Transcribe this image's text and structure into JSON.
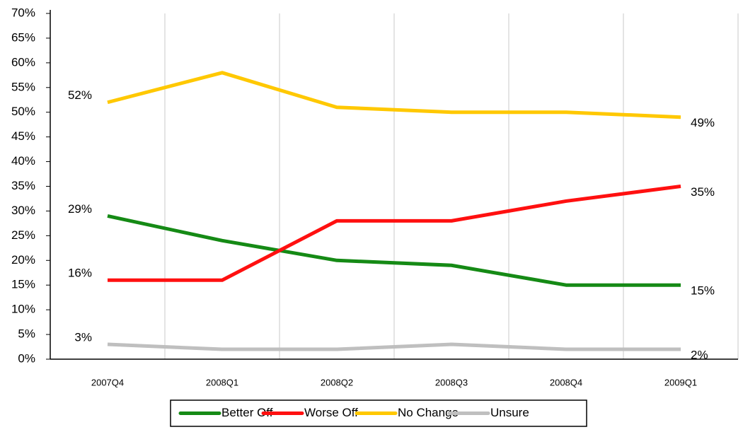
{
  "chart_data": {
    "type": "line",
    "categories": [
      "2007Q4",
      "2008Q1",
      "2008Q2",
      "2008Q3",
      "2008Q4",
      "2009Q1"
    ],
    "series": [
      {
        "name": "Better Off",
        "color": "#158a15",
        "values": [
          29,
          24,
          20,
          19,
          15,
          15
        ],
        "value_labels": [
          "29%",
          null,
          null,
          null,
          null,
          "15%"
        ]
      },
      {
        "name": "Worse Off",
        "color": "#ff1010",
        "values": [
          16,
          16,
          28,
          28,
          32,
          35
        ],
        "value_labels": [
          "16%",
          null,
          null,
          null,
          null,
          "35%"
        ]
      },
      {
        "name": "No Change",
        "color": "#ffc800",
        "values": [
          52,
          58,
          51,
          50,
          50,
          49
        ],
        "value_labels": [
          "52%",
          null,
          null,
          null,
          null,
          "49%"
        ]
      },
      {
        "name": "Unsure",
        "color": "#bfbfbf",
        "values": [
          3,
          2,
          2,
          3,
          2,
          2
        ],
        "value_labels": [
          "3%",
          null,
          null,
          null,
          null,
          "2%"
        ]
      }
    ],
    "ylim": [
      0,
      70
    ],
    "yticks": [
      {
        "value": 0,
        "label": "0%"
      },
      {
        "value": 5,
        "label": "5%"
      },
      {
        "value": 10,
        "label": "10%"
      },
      {
        "value": 15,
        "label": "15%"
      },
      {
        "value": 20,
        "label": "20%"
      },
      {
        "value": 25,
        "label": "25%"
      },
      {
        "value": 30,
        "label": "30%"
      },
      {
        "value": 35,
        "label": "35%"
      },
      {
        "value": 40,
        "label": "40%"
      },
      {
        "value": 45,
        "label": "45%"
      },
      {
        "value": 50,
        "label": "50%"
      },
      {
        "value": 55,
        "label": "55%"
      },
      {
        "value": 60,
        "label": "60%"
      },
      {
        "value": 65,
        "label": "65%"
      },
      {
        "value": 70,
        "label": "70%"
      }
    ],
    "grid": true,
    "legend": "bottom"
  }
}
